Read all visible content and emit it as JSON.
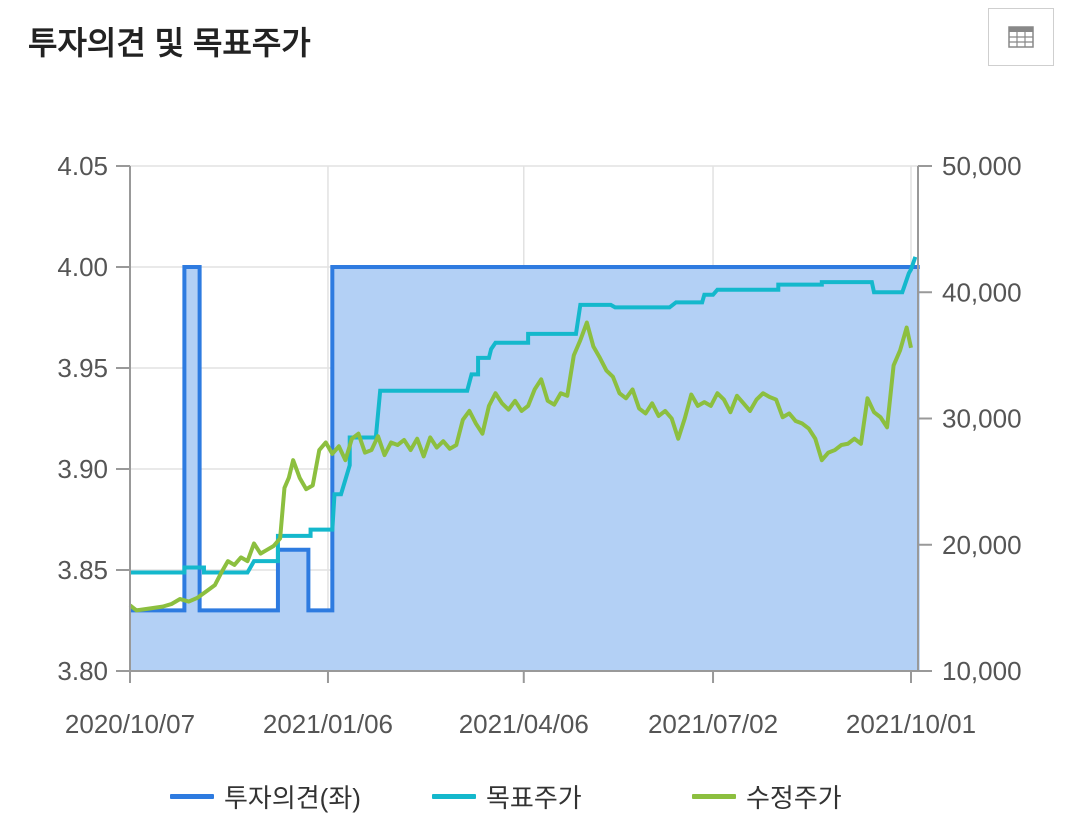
{
  "title": "투자의견 및 목표주가",
  "table_button_icon": "table-icon",
  "colors": {
    "opinion": "#2e7be0",
    "opinion_fill": "#b3d0f5",
    "target": "#14b8cc",
    "price": "#8cbf3f",
    "grid": "#e2e2e2",
    "axis": "#999999"
  },
  "chart_data": {
    "type": "line",
    "title": "투자의견 및 목표주가",
    "x_ticks": [
      "2020/10/07",
      "2021/01/06",
      "2021/04/06",
      "2021/07/02",
      "2021/10/01"
    ],
    "left_axis": {
      "ticks": [
        "3.80",
        "3.85",
        "3.90",
        "3.95",
        "4.00",
        "4.05"
      ],
      "min": 3.8,
      "max": 4.05
    },
    "right_axis": {
      "ticks": [
        "10,000",
        "20,000",
        "30,000",
        "40,000",
        "50,000"
      ],
      "min": 10000,
      "max": 50000
    },
    "legend_position": "bottom",
    "series": [
      {
        "name": "투자의견(좌)",
        "axis": "left",
        "style": "step-area",
        "points": [
          [
            "2020-10-07",
            3.83
          ],
          [
            "2020-11-01",
            3.83
          ],
          [
            "2020-11-01",
            4.0
          ],
          [
            "2020-11-08",
            4.0
          ],
          [
            "2020-11-08",
            3.83
          ],
          [
            "2020-12-14",
            3.83
          ],
          [
            "2020-12-14",
            3.86
          ],
          [
            "2020-12-28",
            3.86
          ],
          [
            "2020-12-28",
            3.83
          ],
          [
            "2021-01-08",
            3.83
          ],
          [
            "2021-01-08",
            4.0
          ],
          [
            "2021-10-05",
            4.0
          ]
        ]
      },
      {
        "name": "목표주가",
        "axis": "right",
        "style": "line",
        "points": [
          [
            "2020-10-07",
            17800
          ],
          [
            "2020-11-01",
            17800
          ],
          [
            "2020-11-01",
            18200
          ],
          [
            "2020-11-10",
            18200
          ],
          [
            "2020-11-10",
            17800
          ],
          [
            "2020-11-30",
            17800
          ],
          [
            "2020-12-03",
            18700
          ],
          [
            "2020-12-14",
            18700
          ],
          [
            "2020-12-14",
            20700
          ],
          [
            "2020-12-29",
            20700
          ],
          [
            "2020-12-29",
            21200
          ],
          [
            "2021-01-08",
            21200
          ],
          [
            "2021-01-09",
            24000
          ],
          [
            "2021-01-12",
            24000
          ],
          [
            "2021-01-16",
            26300
          ],
          [
            "2021-01-16",
            28500
          ],
          [
            "2021-01-28",
            28500
          ],
          [
            "2021-01-30",
            32200
          ],
          [
            "2021-03-11",
            32200
          ],
          [
            "2021-03-13",
            33500
          ],
          [
            "2021-03-16",
            33500
          ],
          [
            "2021-03-16",
            34800
          ],
          [
            "2021-03-21",
            34800
          ],
          [
            "2021-03-22",
            35500
          ],
          [
            "2021-03-24",
            36000
          ],
          [
            "2021-04-08",
            36000
          ],
          [
            "2021-04-08",
            36700
          ],
          [
            "2021-04-30",
            36700
          ],
          [
            "2021-05-02",
            39000
          ],
          [
            "2021-05-16",
            39000
          ],
          [
            "2021-05-18",
            38800
          ],
          [
            "2021-06-12",
            38800
          ],
          [
            "2021-06-15",
            39200
          ],
          [
            "2021-06-27",
            39200
          ],
          [
            "2021-06-28",
            39800
          ],
          [
            "2021-07-02",
            39800
          ],
          [
            "2021-07-04",
            40200
          ],
          [
            "2021-08-01",
            40200
          ],
          [
            "2021-08-01",
            40600
          ],
          [
            "2021-08-21",
            40600
          ],
          [
            "2021-08-21",
            40800
          ],
          [
            "2021-09-13",
            40800
          ],
          [
            "2021-09-14",
            40000
          ],
          [
            "2021-09-27",
            40000
          ],
          [
            "2021-09-30",
            41500
          ],
          [
            "2021-10-01",
            41800
          ],
          [
            "2021-10-03",
            42800
          ]
        ]
      },
      {
        "name": "수정주가",
        "axis": "right",
        "style": "line",
        "points": [
          [
            "2020-10-07",
            15200
          ],
          [
            "2020-10-10",
            14800
          ],
          [
            "2020-10-14",
            14900
          ],
          [
            "2020-10-18",
            15000
          ],
          [
            "2020-10-22",
            15100
          ],
          [
            "2020-10-26",
            15300
          ],
          [
            "2020-10-30",
            15700
          ],
          [
            "2020-11-03",
            15500
          ],
          [
            "2020-11-07",
            15800
          ],
          [
            "2020-11-11",
            16300
          ],
          [
            "2020-11-15",
            16800
          ],
          [
            "2020-11-18",
            17800
          ],
          [
            "2020-11-21",
            18700
          ],
          [
            "2020-11-24",
            18400
          ],
          [
            "2020-11-27",
            19000
          ],
          [
            "2020-11-30",
            18700
          ],
          [
            "2020-12-03",
            20100
          ],
          [
            "2020-12-06",
            19300
          ],
          [
            "2020-12-09",
            19600
          ],
          [
            "2020-12-12",
            19900
          ],
          [
            "2020-12-15",
            20500
          ],
          [
            "2020-12-17",
            24500
          ],
          [
            "2020-12-19",
            25300
          ],
          [
            "2020-12-21",
            26700
          ],
          [
            "2020-12-24",
            25300
          ],
          [
            "2020-12-27",
            24400
          ],
          [
            "2020-12-30",
            24700
          ],
          [
            "2021-01-02",
            27500
          ],
          [
            "2021-01-05",
            28100
          ],
          [
            "2021-01-08",
            27200
          ],
          [
            "2021-01-11",
            27800
          ],
          [
            "2021-01-14",
            26700
          ],
          [
            "2021-01-17",
            28400
          ],
          [
            "2021-01-20",
            28800
          ],
          [
            "2021-01-23",
            27300
          ],
          [
            "2021-01-26",
            27500
          ],
          [
            "2021-01-29",
            28600
          ],
          [
            "2021-02-01",
            27100
          ],
          [
            "2021-02-04",
            28100
          ],
          [
            "2021-02-07",
            27900
          ],
          [
            "2021-02-10",
            28300
          ],
          [
            "2021-02-13",
            27500
          ],
          [
            "2021-02-16",
            28400
          ],
          [
            "2021-02-19",
            27000
          ],
          [
            "2021-02-22",
            28500
          ],
          [
            "2021-02-25",
            27700
          ],
          [
            "2021-02-28",
            28200
          ],
          [
            "2021-03-03",
            27600
          ],
          [
            "2021-03-06",
            27900
          ],
          [
            "2021-03-09",
            29900
          ],
          [
            "2021-03-12",
            30600
          ],
          [
            "2021-03-15",
            29600
          ],
          [
            "2021-03-18",
            28800
          ],
          [
            "2021-03-21",
            31000
          ],
          [
            "2021-03-24",
            32000
          ],
          [
            "2021-03-27",
            31200
          ],
          [
            "2021-03-30",
            30700
          ],
          [
            "2021-04-02",
            31400
          ],
          [
            "2021-04-05",
            30600
          ],
          [
            "2021-04-08",
            31000
          ],
          [
            "2021-04-11",
            32300
          ],
          [
            "2021-04-14",
            33100
          ],
          [
            "2021-04-17",
            31400
          ],
          [
            "2021-04-20",
            31100
          ],
          [
            "2021-04-23",
            32000
          ],
          [
            "2021-04-26",
            31800
          ],
          [
            "2021-04-29",
            35000
          ],
          [
            "2021-05-02",
            36200
          ],
          [
            "2021-05-05",
            37600
          ],
          [
            "2021-05-08",
            35700
          ],
          [
            "2021-05-11",
            34800
          ],
          [
            "2021-05-14",
            33800
          ],
          [
            "2021-05-17",
            33300
          ],
          [
            "2021-05-20",
            32000
          ],
          [
            "2021-05-23",
            31600
          ],
          [
            "2021-05-26",
            32300
          ],
          [
            "2021-05-29",
            30800
          ],
          [
            "2021-06-01",
            30400
          ],
          [
            "2021-06-04",
            31200
          ],
          [
            "2021-06-07",
            30200
          ],
          [
            "2021-06-10",
            30600
          ],
          [
            "2021-06-13",
            30000
          ],
          [
            "2021-06-16",
            28400
          ],
          [
            "2021-06-19",
            30000
          ],
          [
            "2021-06-22",
            31900
          ],
          [
            "2021-06-25",
            31000
          ],
          [
            "2021-06-28",
            31300
          ],
          [
            "2021-07-01",
            31000
          ],
          [
            "2021-07-04",
            32000
          ],
          [
            "2021-07-07",
            31500
          ],
          [
            "2021-07-10",
            30500
          ],
          [
            "2021-07-13",
            31800
          ],
          [
            "2021-07-16",
            31200
          ],
          [
            "2021-07-19",
            30600
          ],
          [
            "2021-07-22",
            31500
          ],
          [
            "2021-07-25",
            32000
          ],
          [
            "2021-07-28",
            31700
          ],
          [
            "2021-07-31",
            31500
          ],
          [
            "2021-08-03",
            30100
          ],
          [
            "2021-08-06",
            30400
          ],
          [
            "2021-08-09",
            29800
          ],
          [
            "2021-08-12",
            29600
          ],
          [
            "2021-08-15",
            29200
          ],
          [
            "2021-08-18",
            28400
          ],
          [
            "2021-08-21",
            26700
          ],
          [
            "2021-08-24",
            27300
          ],
          [
            "2021-08-27",
            27500
          ],
          [
            "2021-08-30",
            27900
          ],
          [
            "2021-09-02",
            28000
          ],
          [
            "2021-09-05",
            28400
          ],
          [
            "2021-09-08",
            28000
          ],
          [
            "2021-09-11",
            31600
          ],
          [
            "2021-09-14",
            30500
          ],
          [
            "2021-09-17",
            30100
          ],
          [
            "2021-09-20",
            29300
          ],
          [
            "2021-09-23",
            34200
          ],
          [
            "2021-09-26",
            35400
          ],
          [
            "2021-09-29",
            37200
          ],
          [
            "2021-10-01",
            35600
          ]
        ]
      }
    ]
  }
}
